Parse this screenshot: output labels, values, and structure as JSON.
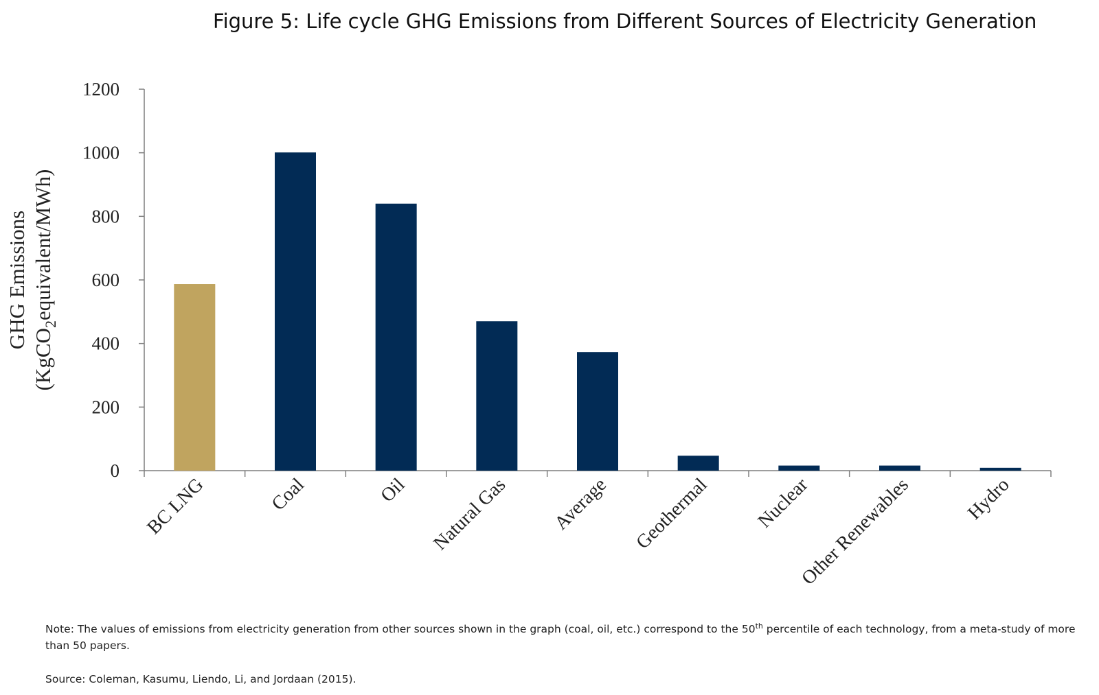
{
  "chart_data": {
    "type": "bar",
    "title": "Figure 5: Life cycle GHG Emissions from Different Sources of Electricity Generation",
    "ylabel_line1": "GHG Emissions",
    "ylabel_line2_pre": "(KgCO",
    "ylabel_line2_sub": "2",
    "ylabel_line2_post": "equivalent/MWh)",
    "xlabel": "",
    "categories": [
      "BC LNG",
      "Coal",
      "Oil",
      "Natural Gas",
      "Average",
      "Geothermal",
      "Nuclear",
      "Other Renewables",
      "Hydro"
    ],
    "values": [
      587,
      1001,
      840,
      470,
      373,
      47,
      16,
      16,
      9
    ],
    "ylim": [
      0,
      1200
    ],
    "yticks": [
      "0",
      "200",
      "400",
      "600",
      "800",
      "1000",
      "1200"
    ],
    "grid": false,
    "legend": "none",
    "colors": {
      "highlight": "#c0a45f",
      "default": "#022b55",
      "axis": "#7f7f7f"
    },
    "highlight_category": "BC LNG"
  },
  "notes": {
    "note_pre": "Note: The values of emissions from electricity generation from other sources shown in the graph (coal, oil,  etc.) correspond to the 50",
    "note_sup": "th",
    "note_post": " percentile of each technology, from a meta-study of more than 50 papers.",
    "source": "Source: Coleman, Kasumu, Liendo, Li, and Jordaan (2015)."
  }
}
